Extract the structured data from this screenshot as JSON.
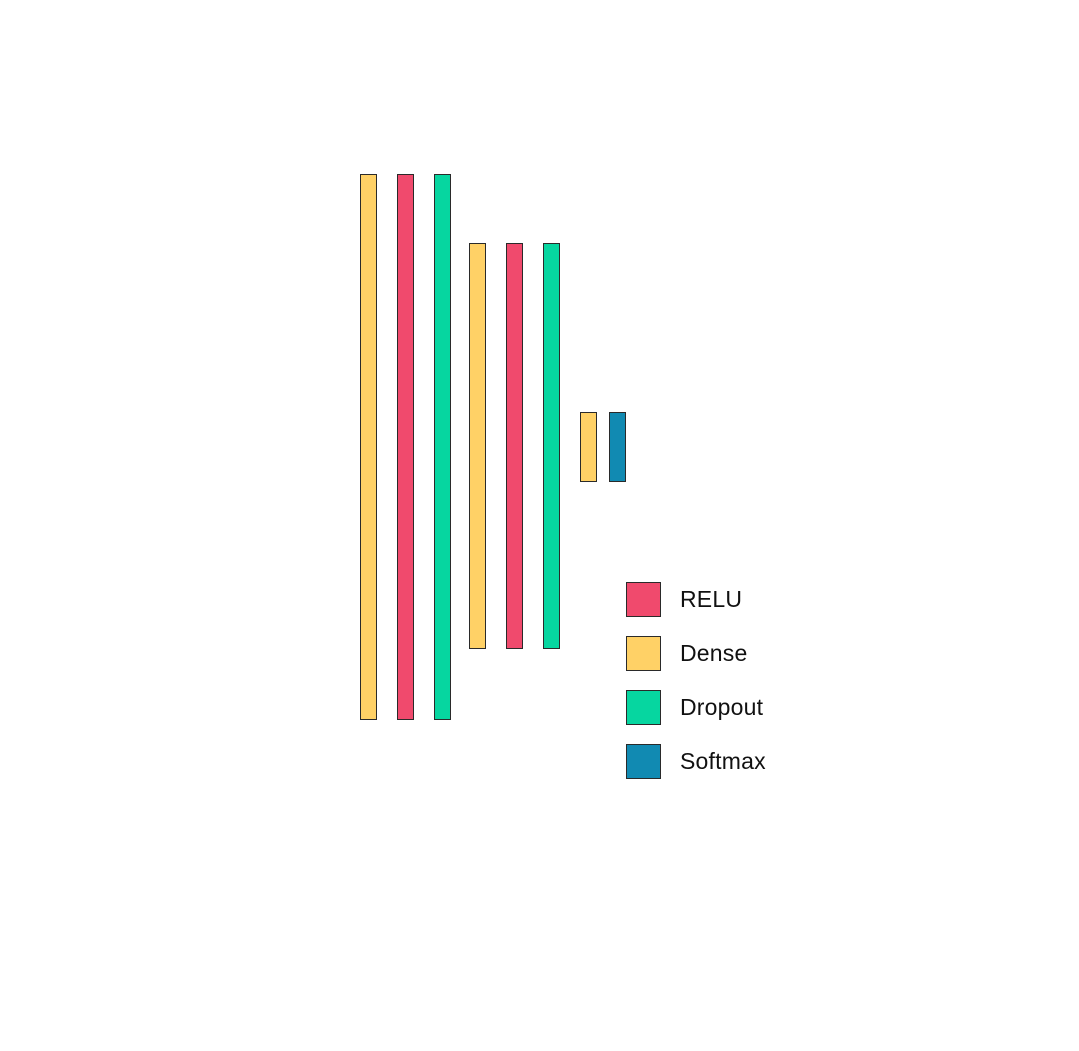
{
  "colors": {
    "RELU": "#f04a6d",
    "Dense": "#ffd166",
    "Dropout": "#06d6a0",
    "Softmax": "#118ab2"
  },
  "layers": [
    {
      "type": "Dense"
    },
    {
      "type": "RELU"
    },
    {
      "type": "Dropout"
    },
    {
      "type": "Dense"
    },
    {
      "type": "RELU"
    },
    {
      "type": "Dropout"
    },
    {
      "type": "Dense"
    },
    {
      "type": "Softmax"
    }
  ],
  "legend": [
    {
      "type": "RELU",
      "label": "RELU"
    },
    {
      "type": "Dense",
      "label": "Dense"
    },
    {
      "type": "Dropout",
      "label": "Dropout"
    },
    {
      "type": "Softmax",
      "label": "Softmax"
    }
  ]
}
